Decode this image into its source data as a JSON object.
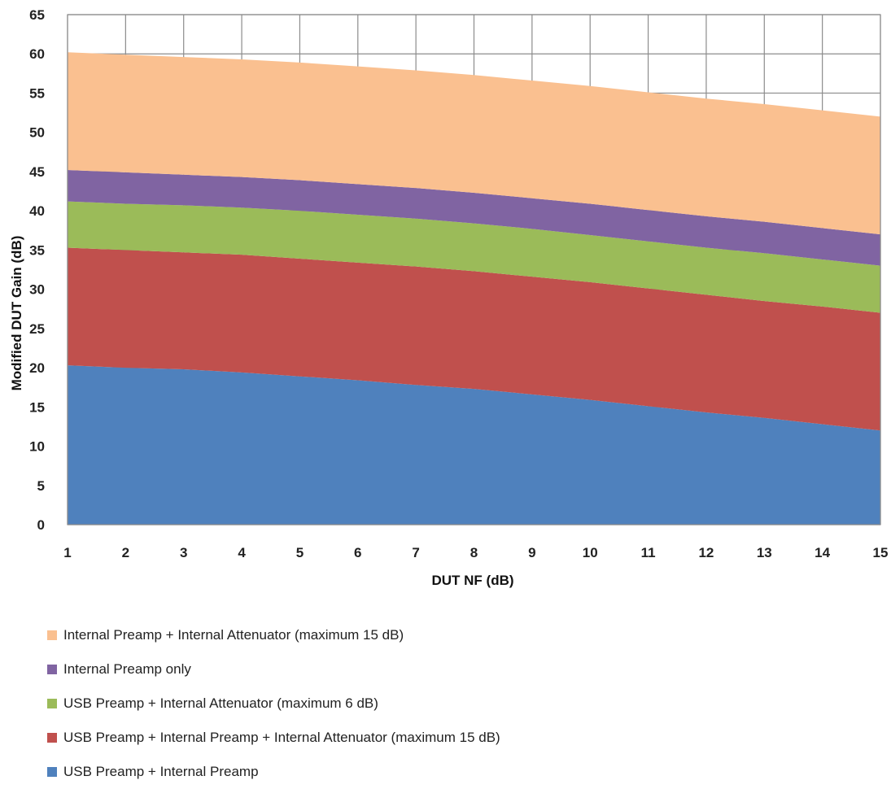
{
  "chart_data": {
    "type": "area",
    "stacked": true,
    "x": [
      1,
      2,
      3,
      4,
      5,
      6,
      7,
      8,
      9,
      10,
      11,
      12,
      13,
      14,
      15
    ],
    "xlabel": "DUT NF (dB)",
    "ylabel": "Modified DUT Gain (dB)",
    "xlim": [
      1,
      15
    ],
    "ylim": [
      0,
      65
    ],
    "yticks": [
      0,
      5,
      10,
      15,
      20,
      25,
      30,
      35,
      40,
      45,
      50,
      55,
      60,
      65
    ],
    "grid": true,
    "legend_position": "bottom",
    "series": [
      {
        "name": "USB Preamp + Internal Preamp",
        "color": "#4f81bd",
        "top": [
          20.3,
          20.0,
          19.8,
          19.4,
          18.9,
          18.4,
          17.8,
          17.3,
          16.6,
          15.9,
          15.1,
          14.3,
          13.6,
          12.8,
          12.0
        ]
      },
      {
        "name": "USB Preamp + Internal Preamp + Internal Attenuator (maximum 15 dB)",
        "color": "#c0504d",
        "top": [
          35.3,
          35.0,
          34.7,
          34.4,
          33.9,
          33.4,
          32.9,
          32.3,
          31.6,
          30.9,
          30.1,
          29.3,
          28.5,
          27.8,
          27.0
        ]
      },
      {
        "name": "USB Preamp + Internal Attenuator (maximum 6 dB)",
        "color": "#9bbb59",
        "top": [
          41.2,
          40.9,
          40.7,
          40.4,
          40.0,
          39.5,
          39.0,
          38.4,
          37.7,
          36.9,
          36.1,
          35.3,
          34.6,
          33.8,
          33.0
        ]
      },
      {
        "name": "Internal Preamp only",
        "color": "#8064a2",
        "top": [
          45.2,
          44.9,
          44.6,
          44.3,
          43.9,
          43.4,
          42.9,
          42.3,
          41.6,
          40.9,
          40.1,
          39.3,
          38.6,
          37.8,
          37.0
        ]
      },
      {
        "name": "Internal Preamp + Internal Attenuator (maximum 15 dB)",
        "color": "#fac090",
        "top": [
          60.2,
          59.9,
          59.6,
          59.3,
          58.9,
          58.4,
          57.9,
          57.3,
          56.6,
          55.9,
          55.1,
          54.3,
          53.6,
          52.8,
          52.0
        ]
      }
    ]
  },
  "legend": {
    "items": [
      {
        "label": "Internal Preamp + Internal Attenuator (maximum 15 dB)",
        "color": "#fac090"
      },
      {
        "label": "Internal Preamp only",
        "color": "#8064a2"
      },
      {
        "label": "USB Preamp + Internal Attenuator (maximum 6 dB)",
        "color": "#9bbb59"
      },
      {
        "label": "USB Preamp + Internal Preamp + Internal Attenuator (maximum 15 dB)",
        "color": "#c0504d"
      },
      {
        "label": "USB Preamp + Internal Preamp",
        "color": "#4f81bd"
      }
    ]
  }
}
